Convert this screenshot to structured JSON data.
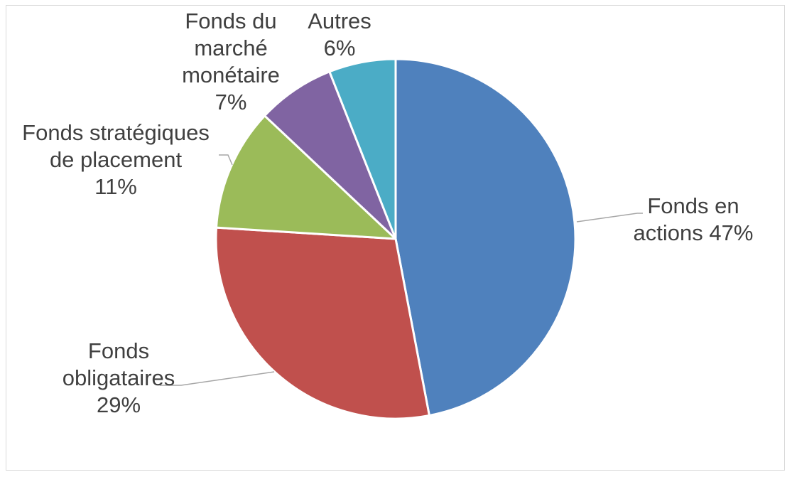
{
  "chart_data": {
    "type": "pie",
    "title": "",
    "slices": [
      {
        "name": "Fonds en actions",
        "value": 47,
        "label_lines": [
          "Fonds en",
          "actions 47%"
        ],
        "color": "#4f81bd"
      },
      {
        "name": "Fonds obligataires",
        "value": 29,
        "label_lines": [
          "Fonds",
          "obligataires",
          "29%"
        ],
        "color": "#c0504d"
      },
      {
        "name": "Fonds stratégiques de placement",
        "value": 11,
        "label_lines": [
          "Fonds stratégiques",
          "de placement",
          "11%"
        ],
        "color": "#9bbb59"
      },
      {
        "name": "Fonds du marché monétaire",
        "value": 7,
        "label_lines": [
          "Fonds du",
          "marché",
          "monétaire",
          "7%"
        ],
        "color": "#8064a2"
      },
      {
        "name": "Autres",
        "value": 6,
        "label_lines": [
          "Autres",
          "6%"
        ],
        "color": "#4bacc6"
      }
    ],
    "legend": "none",
    "label_text_color": "#404040",
    "leader_line_color": "#a6a6a6"
  }
}
